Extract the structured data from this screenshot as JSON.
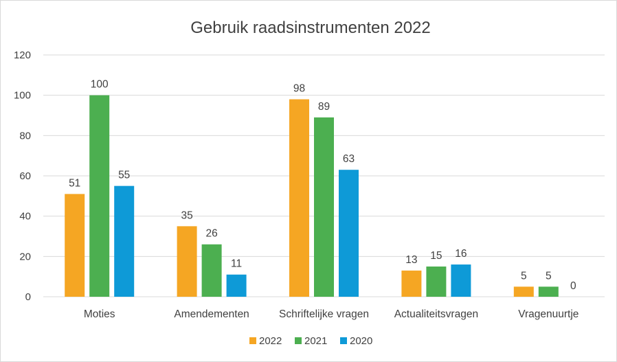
{
  "chart_data": {
    "type": "bar",
    "title": "Gebruik raadsinstrumenten 2022",
    "xlabel": "",
    "ylabel": "",
    "categories": [
      "Moties",
      "Amendementen",
      "Schriftelijke vragen",
      "Actualiteitsvragen",
      "Vragenuurtje"
    ],
    "series": [
      {
        "name": "2022",
        "values": [
          51,
          35,
          98,
          13,
          5
        ],
        "color": "#f5a623"
      },
      {
        "name": "2021",
        "values": [
          100,
          26,
          89,
          15,
          5
        ],
        "color": "#4caf50"
      },
      {
        "name": "2020",
        "values": [
          55,
          11,
          63,
          16,
          0
        ],
        "color": "#0e9ad7"
      }
    ],
    "ylim": [
      0,
      120
    ],
    "yticks": [
      0,
      20,
      40,
      60,
      80,
      100,
      120
    ],
    "grid": true,
    "legend_position": "bottom-center"
  }
}
